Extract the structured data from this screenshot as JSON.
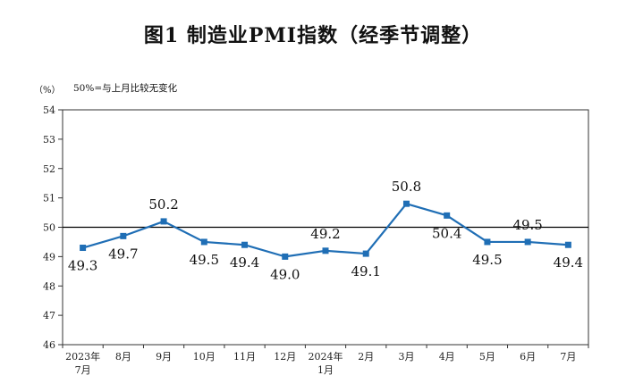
{
  "title": "图1  制造业PMI指数（经季节调整）",
  "unit_label": "（%）",
  "note": "50%=与上月比较无变化",
  "colors": {
    "line": "#1f6eb5",
    "reference": "#000000",
    "frame": "#333333"
  },
  "chart_data": {
    "type": "line",
    "title": "图1  制造业PMI指数（经季节调整）",
    "ylim": [
      46,
      54
    ],
    "yticks": [
      46,
      47,
      48,
      49,
      50,
      51,
      52,
      53,
      54
    ],
    "reference_line": 50,
    "grid": false,
    "categories": [
      [
        "2023年",
        "7月"
      ],
      [
        "8月"
      ],
      [
        "9月"
      ],
      [
        "10月"
      ],
      [
        "11月"
      ],
      [
        "12月"
      ],
      [
        "2024年",
        "1月"
      ],
      [
        "2月"
      ],
      [
        "3月"
      ],
      [
        "4月"
      ],
      [
        "5月"
      ],
      [
        "6月"
      ],
      [
        "7月"
      ]
    ],
    "values": [
      49.3,
      49.7,
      50.2,
      49.5,
      49.4,
      49.0,
      49.2,
      49.1,
      50.8,
      50.4,
      49.5,
      49.5,
      49.4
    ],
    "labels": [
      "49.3",
      "49.7",
      "50.2",
      "49.5",
      "49.4",
      "49.0",
      "49.2",
      "49.1",
      "50.8",
      "50.4",
      "49.5",
      "49.5",
      "49.4"
    ]
  }
}
